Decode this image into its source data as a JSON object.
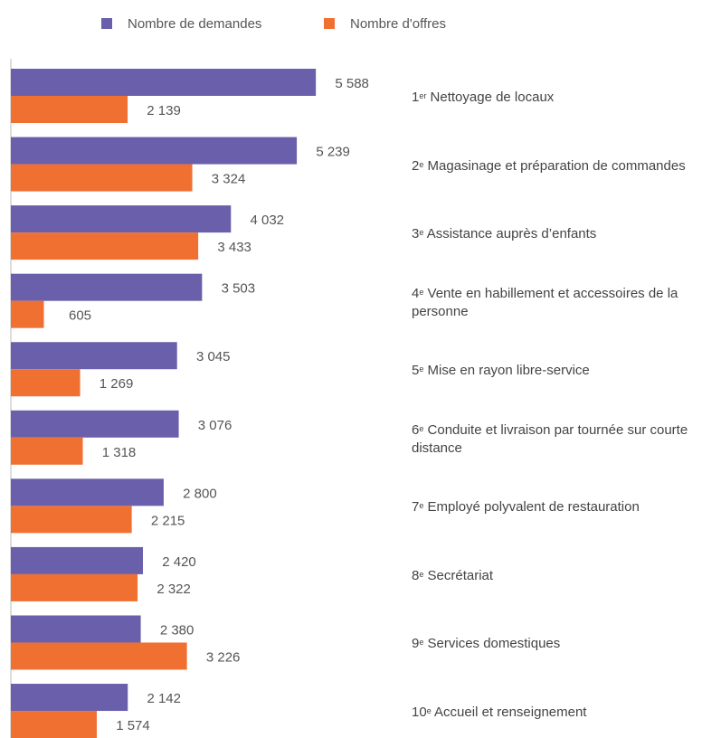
{
  "chart_data": {
    "type": "hbar",
    "categories": [
      "1er Nettoyage de locaux",
      "2e Magasinage et préparation de commandes",
      "3e Assistance auprès d’enfants",
      "4e Vente en habillement et accessoires de la personne",
      "5e Mise en rayon libre-service",
      "6e Conduite et livraison par tournée sur courte distance",
      "7e Employé polyvalent de restauration",
      "8e Secrétariat",
      "9e Services domestiques",
      "10e Accueil et renseignement"
    ],
    "series": [
      {
        "name": "Nombre de demandes",
        "color": "#6a5faa",
        "values": [
          5588,
          5239,
          4032,
          3503,
          3045,
          3076,
          2800,
          2420,
          2380,
          2142
        ],
        "value_labels": [
          "5 588",
          "5 239",
          "4 032",
          "3 503",
          "3 045",
          "3 076",
          "2 800",
          "2 420",
          "2 380",
          "2 142"
        ]
      },
      {
        "name": "Nombre d'offres",
        "color": "#f07032",
        "values": [
          2139,
          3324,
          3433,
          605,
          1269,
          1318,
          2215,
          2322,
          3226,
          1574
        ],
        "value_labels": [
          "2 139",
          "3 324",
          "3 433",
          "605",
          "1 269",
          "1 318",
          "2 215",
          "2 322",
          "3 226",
          "1 574"
        ]
      }
    ],
    "xlim": [
      0,
      6000
    ]
  }
}
